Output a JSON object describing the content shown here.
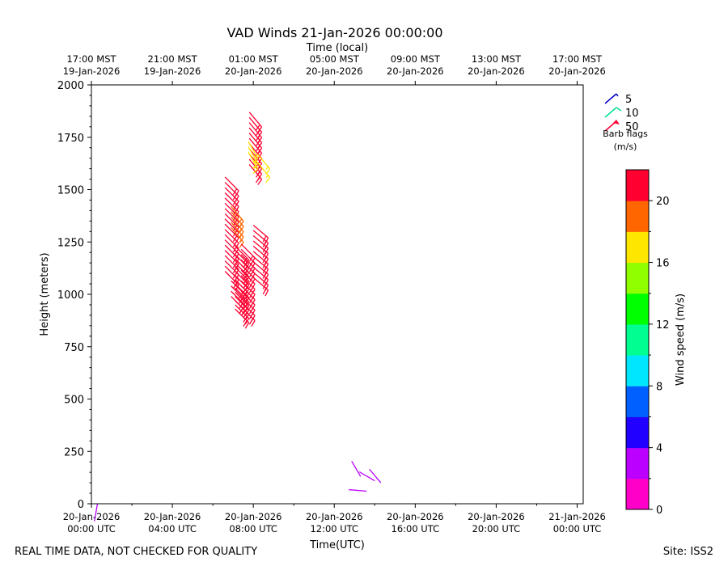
{
  "chart_data": {
    "type": "barb",
    "title": "VAD Winds 21-Jan-2026 00:00:00",
    "top_axis_label": "Time (local)",
    "xlabel": "Time(UTC)",
    "ylabel": "Height (meters)",
    "ylim": [
      0,
      2000
    ],
    "xlim_hours": [
      0,
      24.3
    ],
    "y_ticks": [
      "0",
      "250",
      "500",
      "750",
      "1000",
      "1250",
      "1500",
      "1750",
      "2000"
    ],
    "x_ticks": [
      {
        "line1": "20-Jan-2026",
        "line2": "00:00 UTC",
        "hour": 0
      },
      {
        "line1": "20-Jan-2026",
        "line2": "04:00 UTC",
        "hour": 4
      },
      {
        "line1": "20-Jan-2026",
        "line2": "08:00 UTC",
        "hour": 8
      },
      {
        "line1": "20-Jan-2026",
        "line2": "12:00 UTC",
        "hour": 12
      },
      {
        "line1": "20-Jan-2026",
        "line2": "16:00 UTC",
        "hour": 16
      },
      {
        "line1": "20-Jan-2026",
        "line2": "20:00 UTC",
        "hour": 20
      },
      {
        "line1": "21-Jan-2026",
        "line2": "00:00 UTC",
        "hour": 24
      }
    ],
    "top_ticks": [
      {
        "line1": "17:00 MST",
        "line2": "19-Jan-2026",
        "hour": 0
      },
      {
        "line1": "21:00 MST",
        "line2": "19-Jan-2026",
        "hour": 4
      },
      {
        "line1": "01:00 MST",
        "line2": "20-Jan-2026",
        "hour": 8
      },
      {
        "line1": "05:00 MST",
        "line2": "20-Jan-2026",
        "hour": 12
      },
      {
        "line1": "09:00 MST",
        "line2": "20-Jan-2026",
        "hour": 16
      },
      {
        "line1": "13:00 MST",
        "line2": "20-Jan-2026",
        "hour": 20
      },
      {
        "line1": "17:00 MST",
        "line2": "20-Jan-2026",
        "hour": 24
      }
    ],
    "legend": {
      "items": [
        {
          "label": "5",
          "color": "#0000cc"
        },
        {
          "label": "10",
          "color": "#00e090"
        },
        {
          "label": "50",
          "color": "#ff0030"
        }
      ],
      "title_line1": "Barb flags",
      "title_line2": "(m/s)"
    },
    "colorbar": {
      "label": "Wind speed (m/s)",
      "range": [
        0,
        22
      ],
      "ticks": [
        "0",
        "4",
        "8",
        "12",
        "16",
        "20"
      ],
      "bands": [
        "#ff00c8",
        "#bb00ff",
        "#2200ff",
        "#0060ff",
        "#00e6ff",
        "#00ff90",
        "#00ff00",
        "#90ff00",
        "#ffe600",
        "#ff6600",
        "#ff0030"
      ]
    },
    "barb_groups": [
      {
        "hour": 6.6,
        "h_start": 1110,
        "h_end": 1560,
        "step": 25,
        "speed": 20,
        "dir": 135
      },
      {
        "hour": 6.9,
        "h_start": 1320,
        "h_end": 1420,
        "step": 25,
        "speed": 19,
        "dir": 140
      },
      {
        "hour": 6.9,
        "h_start": 990,
        "h_end": 1070,
        "step": 25,
        "speed": 20,
        "dir": 135
      },
      {
        "hour": 7.1,
        "h_start": 930,
        "h_end": 1240,
        "step": 20,
        "speed": 21,
        "dir": 135
      },
      {
        "hour": 7.4,
        "h_start": 940,
        "h_end": 1250,
        "step": 25,
        "speed": 21,
        "dir": 135
      },
      {
        "hour": 7.8,
        "h_start": 1620,
        "h_end": 1870,
        "step": 25,
        "speed": 20,
        "dir": 140
      },
      {
        "hour": 7.75,
        "h_start": 1680,
        "h_end": 1750,
        "step": 25,
        "speed": 17,
        "dir": 150
      },
      {
        "hour": 8.0,
        "h_start": 1080,
        "h_end": 1330,
        "step": 25,
        "speed": 21,
        "dir": 130
      },
      {
        "hour": 8.2,
        "h_start": 1630,
        "h_end": 1670,
        "step": 40,
        "speed": 17,
        "dir": 140
      }
    ],
    "low_barbs": [
      {
        "hour": 0.3,
        "height": 0,
        "speed": 2,
        "dir": 190
      },
      {
        "hour": 13.3,
        "height": 130,
        "speed": 3,
        "dir": 330
      },
      {
        "hour": 13.6,
        "height": 60,
        "speed": 3,
        "dir": 275
      },
      {
        "hour": 14.0,
        "height": 110,
        "speed": 3,
        "dir": 300
      },
      {
        "hour": 14.3,
        "height": 100,
        "speed": 3,
        "dir": 320
      }
    ]
  },
  "footer": {
    "left_text": "REAL TIME DATA, NOT CHECKED FOR QUALITY",
    "right_text": "Site: ISS2"
  }
}
